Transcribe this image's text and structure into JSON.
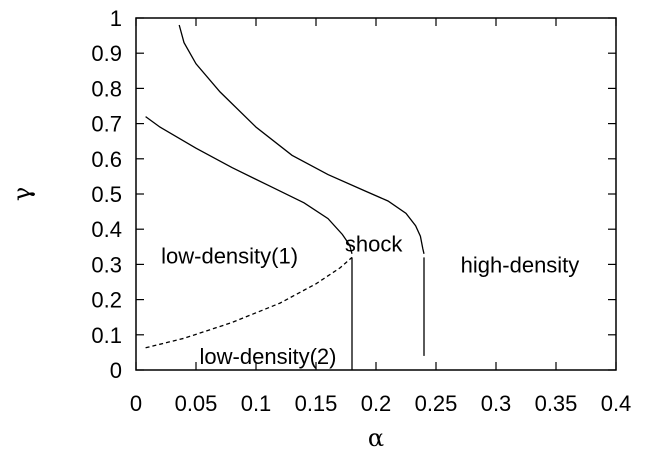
{
  "chart_data": {
    "type": "line",
    "title": "",
    "xlabel": "α",
    "ylabel": "γ",
    "xlim": [
      0,
      0.4
    ],
    "ylim": [
      0,
      1
    ],
    "grid": false,
    "x_ticks": [
      0,
      0.05,
      0.1,
      0.15,
      0.2,
      0.25,
      0.3,
      0.35,
      0.4
    ],
    "x_tick_labels": [
      "0",
      "0.05",
      "0.1",
      "0.15",
      "0.2",
      "0.25",
      "0.3",
      "0.35",
      "0.4"
    ],
    "y_ticks": [
      0,
      0.1,
      0.2,
      0.3,
      0.4,
      0.5,
      0.6,
      0.7,
      0.8,
      0.9,
      1
    ],
    "y_tick_labels": [
      "0",
      "0.1",
      "0.2",
      "0.3",
      "0.4",
      "0.5",
      "0.6",
      "0.7",
      "0.8",
      "0.9",
      "1"
    ],
    "series": [
      {
        "style": "solid",
        "points": [
          [
            0.036,
            0.98
          ],
          [
            0.04,
            0.93
          ],
          [
            0.05,
            0.87
          ],
          [
            0.07,
            0.79
          ],
          [
            0.1,
            0.69
          ],
          [
            0.13,
            0.61
          ],
          [
            0.16,
            0.555
          ],
          [
            0.19,
            0.51
          ],
          [
            0.21,
            0.48
          ],
          [
            0.225,
            0.445
          ],
          [
            0.233,
            0.41
          ],
          [
            0.237,
            0.38
          ],
          [
            0.239,
            0.345
          ],
          [
            0.24,
            0.33
          ]
        ]
      },
      {
        "style": "solid",
        "points": [
          [
            0.24,
            0.32
          ],
          [
            0.24,
            0.04
          ]
        ]
      },
      {
        "style": "solid",
        "points": [
          [
            0.008,
            0.72
          ],
          [
            0.02,
            0.69
          ],
          [
            0.05,
            0.63
          ],
          [
            0.08,
            0.575
          ],
          [
            0.11,
            0.525
          ],
          [
            0.14,
            0.475
          ],
          [
            0.16,
            0.43
          ],
          [
            0.172,
            0.385
          ],
          [
            0.178,
            0.355
          ],
          [
            0.18,
            0.33
          ]
        ]
      },
      {
        "style": "solid",
        "points": [
          [
            0.18,
            0.32
          ],
          [
            0.18,
            0.0
          ]
        ]
      },
      {
        "style": "dashed",
        "points": [
          [
            0.008,
            0.063
          ],
          [
            0.04,
            0.09
          ],
          [
            0.08,
            0.135
          ],
          [
            0.12,
            0.19
          ],
          [
            0.15,
            0.245
          ],
          [
            0.17,
            0.29
          ],
          [
            0.18,
            0.32
          ]
        ]
      }
    ],
    "annotations": [
      {
        "text": "shock",
        "x": 0.198,
        "y": 0.36
      },
      {
        "text": "low-density(1)",
        "x": 0.078,
        "y": 0.325
      },
      {
        "text": "high-density",
        "x": 0.32,
        "y": 0.3
      },
      {
        "text": "low-density(2)",
        "x": 0.11,
        "y": 0.04
      }
    ]
  }
}
